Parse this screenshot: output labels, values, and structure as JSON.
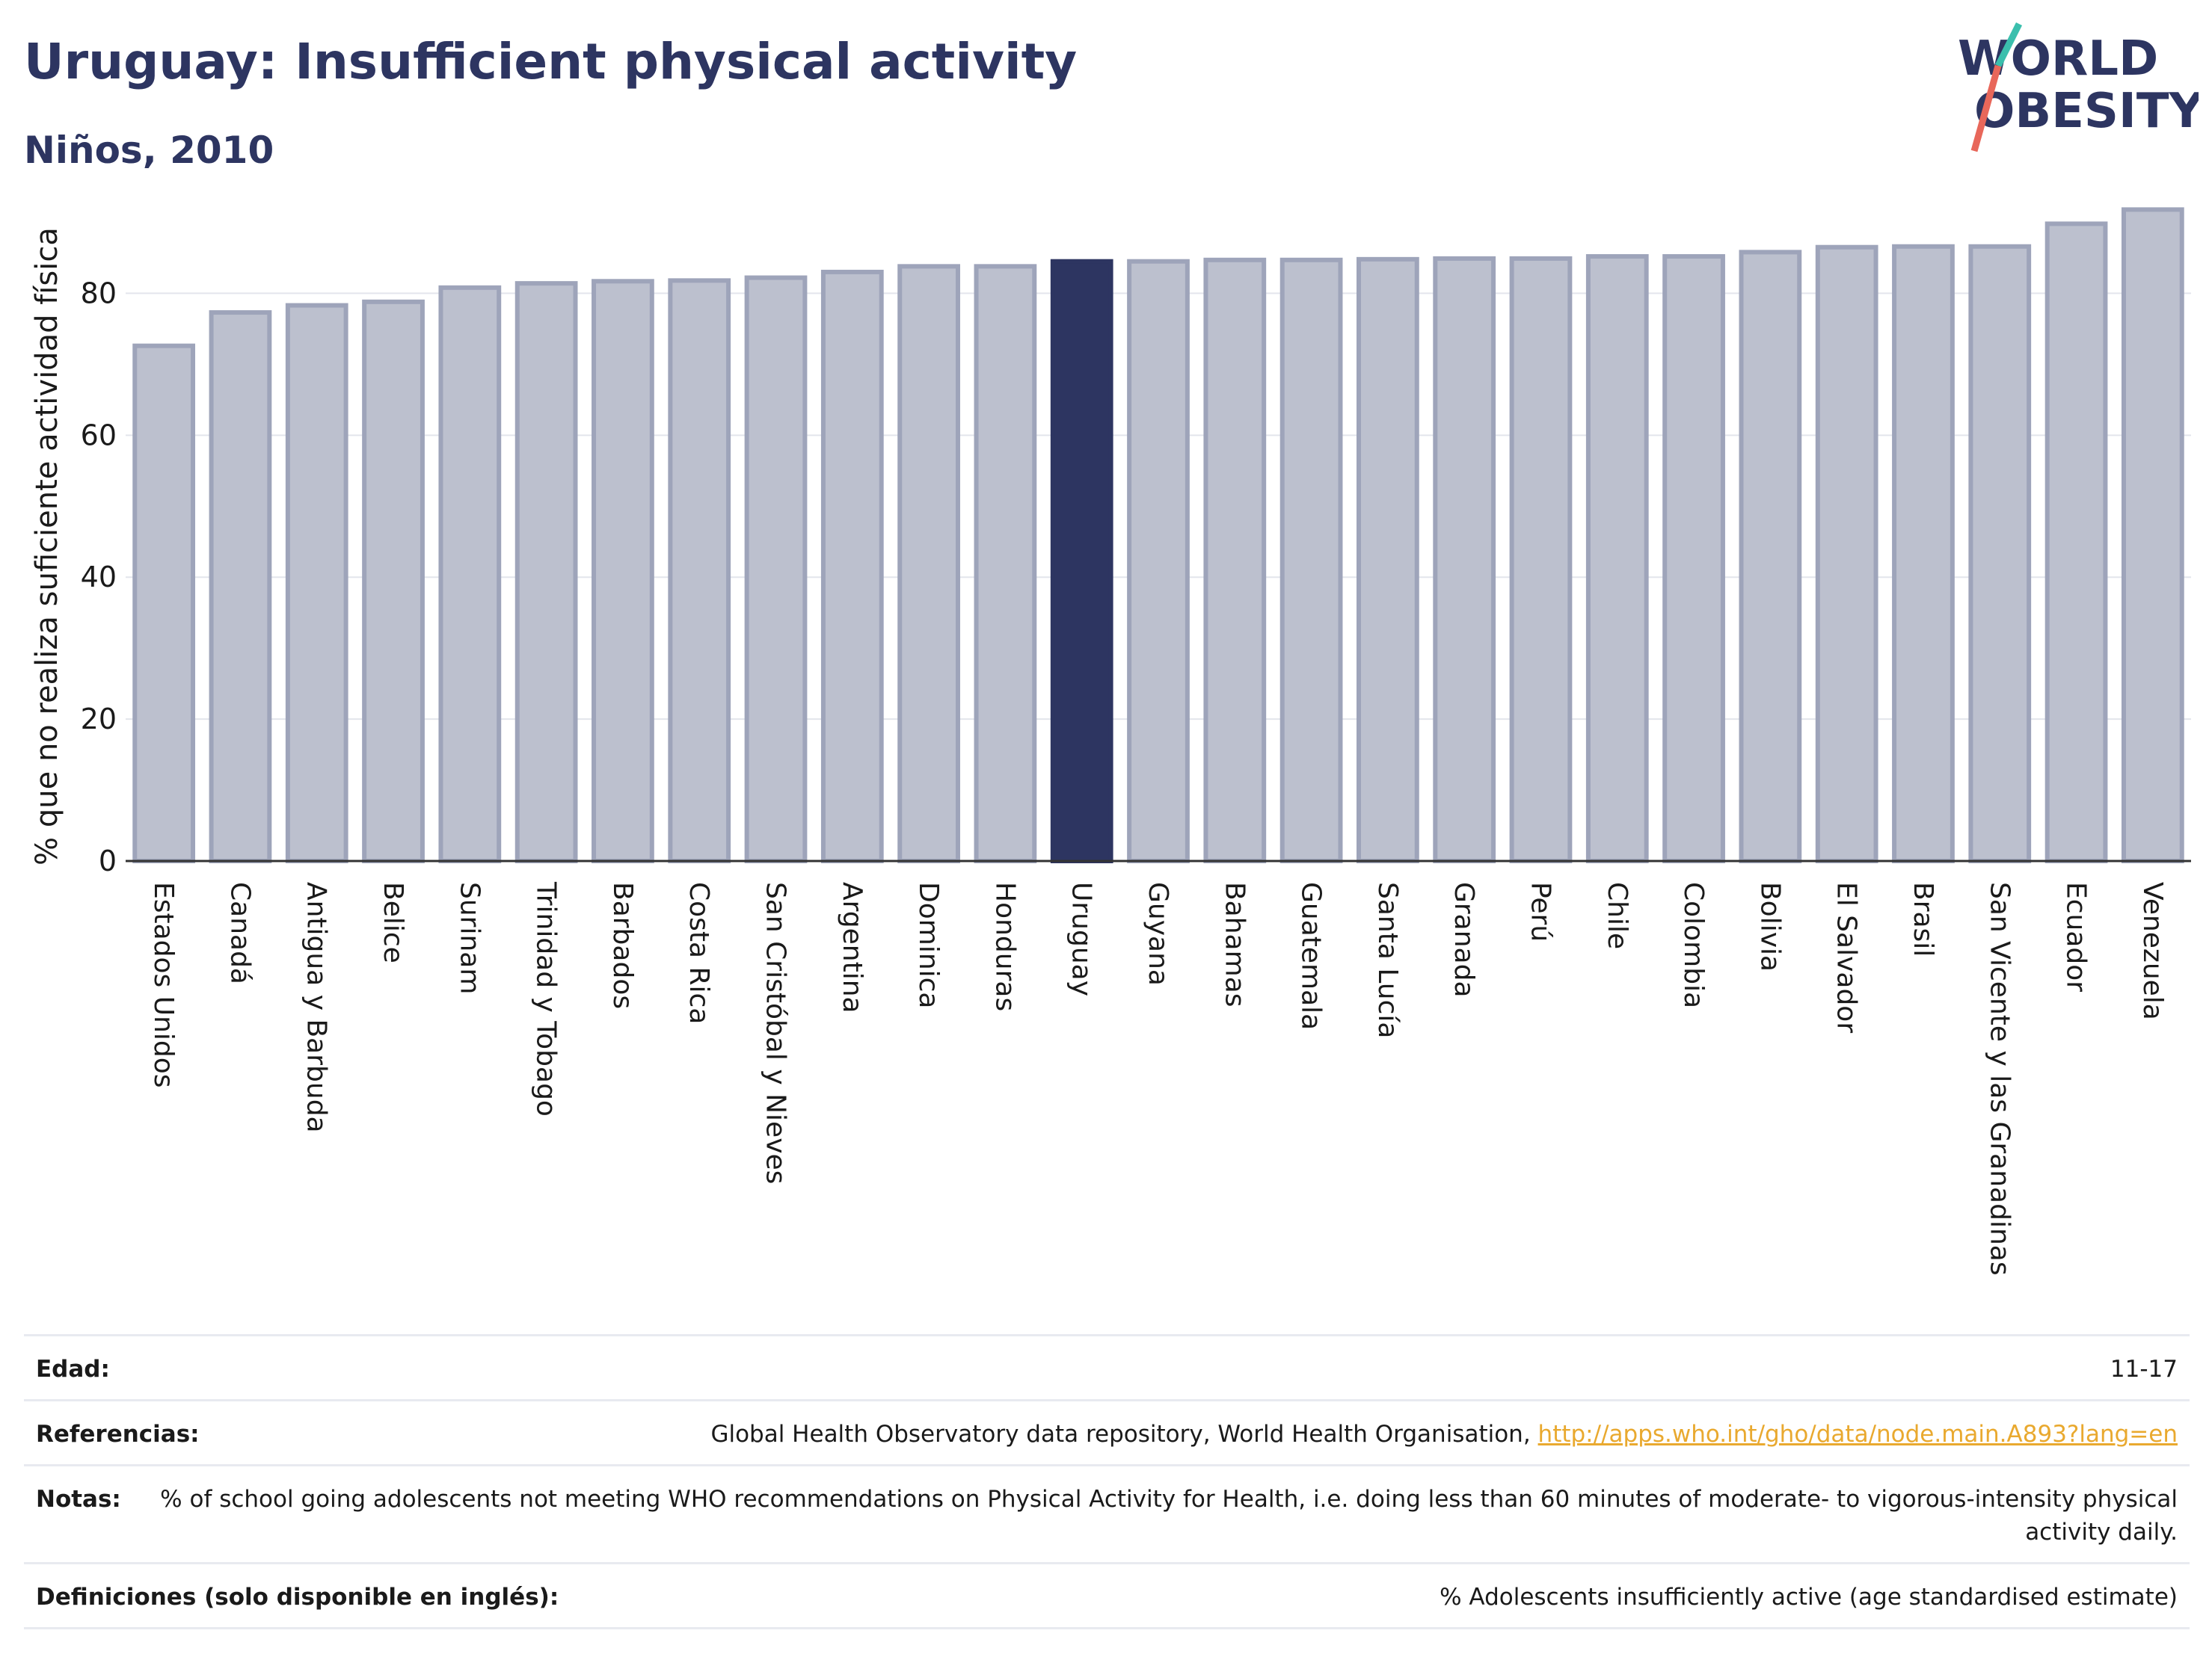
{
  "header": {
    "title": "Uruguay: Insufficient physical activity",
    "subtitle": "Niños, 2010"
  },
  "logo": {
    "line1": "WORLD",
    "line2": "OBESITY",
    "accent_colors": [
      "#3bbfad",
      "#e8675a"
    ]
  },
  "colors": {
    "bar": "#bcc0ce",
    "bar_stroke": "#9ea4ba",
    "highlight": "#2d3561",
    "text": "#2d3561"
  },
  "chart_data": {
    "type": "bar",
    "title": "Uruguay: Insufficient physical activity",
    "subtitle": "Niños, 2010",
    "ylabel": "% que no realiza suficiente actividad física",
    "xlabel": "",
    "ylim": [
      0,
      95
    ],
    "yticks": [
      0,
      20,
      40,
      60,
      80
    ],
    "grid": true,
    "highlight": "Uruguay",
    "categories": [
      "Estados Unidos",
      "Canadá",
      "Antigua y Barbuda",
      "Belice",
      "Surinam",
      "Trinidad y Tobago",
      "Barbados",
      "Costa Rica",
      "San Cristóbal y Nieves",
      "Argentina",
      "Dominica",
      "Honduras",
      "Uruguay",
      "Guyana",
      "Bahamas",
      "Guatemala",
      "Santa Lucía",
      "Granada",
      "Perú",
      "Chile",
      "Colombia",
      "Bolivia",
      "El Salvador",
      "Brasil",
      "San Vicente y las Granadinas",
      "Ecuador",
      "Venezuela"
    ],
    "values": [
      72.6,
      77.3,
      78.3,
      78.8,
      80.8,
      81.4,
      81.7,
      81.8,
      82.2,
      83.0,
      83.8,
      83.8,
      84.5,
      84.5,
      84.7,
      84.7,
      84.8,
      84.9,
      84.9,
      85.2,
      85.2,
      85.8,
      86.5,
      86.6,
      86.6,
      89.8,
      91.8
    ]
  },
  "meta": [
    {
      "key": "Edad:",
      "value": "11-17"
    },
    {
      "key": "Referencias:",
      "value": "Global Health Observatory data repository, World Health Organisation, ",
      "link": "http://apps.who.int/gho/data/node.main.A893?lang=en"
    },
    {
      "key": "Notas:",
      "value": "% of school going adolescents not meeting WHO recommendations on Physical Activity for Health, i.e. doing less than 60 minutes of moderate- to vigorous-intensity physical activity daily."
    },
    {
      "key": "Definiciones (solo disponible en inglés):",
      "value": "% Adolescents insufficiently active (age standardised estimate)"
    }
  ]
}
